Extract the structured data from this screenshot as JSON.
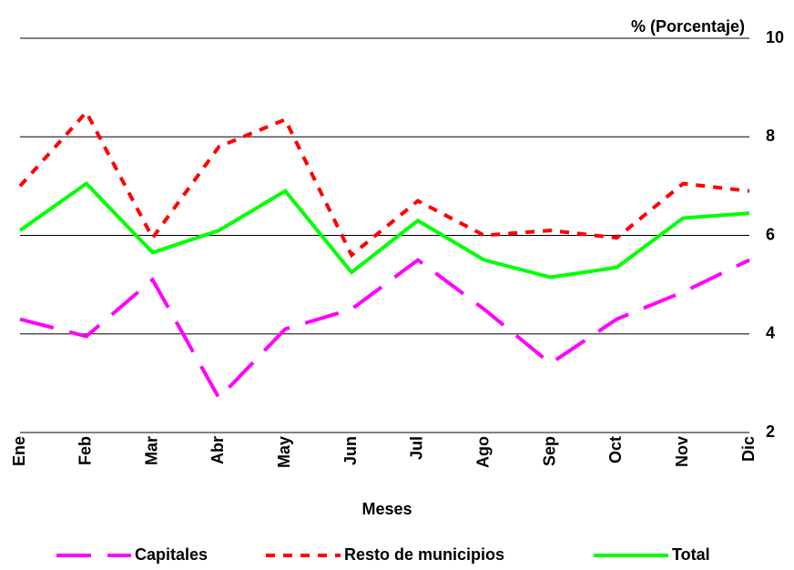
{
  "chart_data": {
    "type": "line",
    "y_label": "% (Porcentaje)",
    "x_label": "Meses",
    "categories": [
      "Ene",
      "Feb",
      "Mar",
      "Abr",
      "May",
      "Jun",
      "Jul",
      "Ago",
      "Sep",
      "Oct",
      "Nov",
      "Dic"
    ],
    "series": [
      {
        "name": "Capitales",
        "color": "#ff00ff",
        "dash": "long",
        "values": [
          4.3,
          3.95,
          5.1,
          2.7,
          4.1,
          4.5,
          5.5,
          4.5,
          3.4,
          4.3,
          4.85,
          5.5
        ]
      },
      {
        "name": "Resto de municipios",
        "color": "#ff0000",
        "dash": "short",
        "values": [
          7.0,
          8.5,
          5.95,
          7.8,
          8.35,
          5.6,
          6.7,
          6.0,
          6.1,
          5.95,
          7.05,
          6.9
        ]
      },
      {
        "name": "Total",
        "color": "#00ff00",
        "dash": "solid",
        "values": [
          6.1,
          7.05,
          5.65,
          6.1,
          6.9,
          5.25,
          6.3,
          5.5,
          5.15,
          5.35,
          6.35,
          6.45
        ]
      }
    ],
    "ylim": [
      2,
      10
    ],
    "yticks": [
      2,
      4,
      6,
      8,
      10
    ],
    "grid": true,
    "y_axis_side": "right",
    "legend": "bottom"
  }
}
